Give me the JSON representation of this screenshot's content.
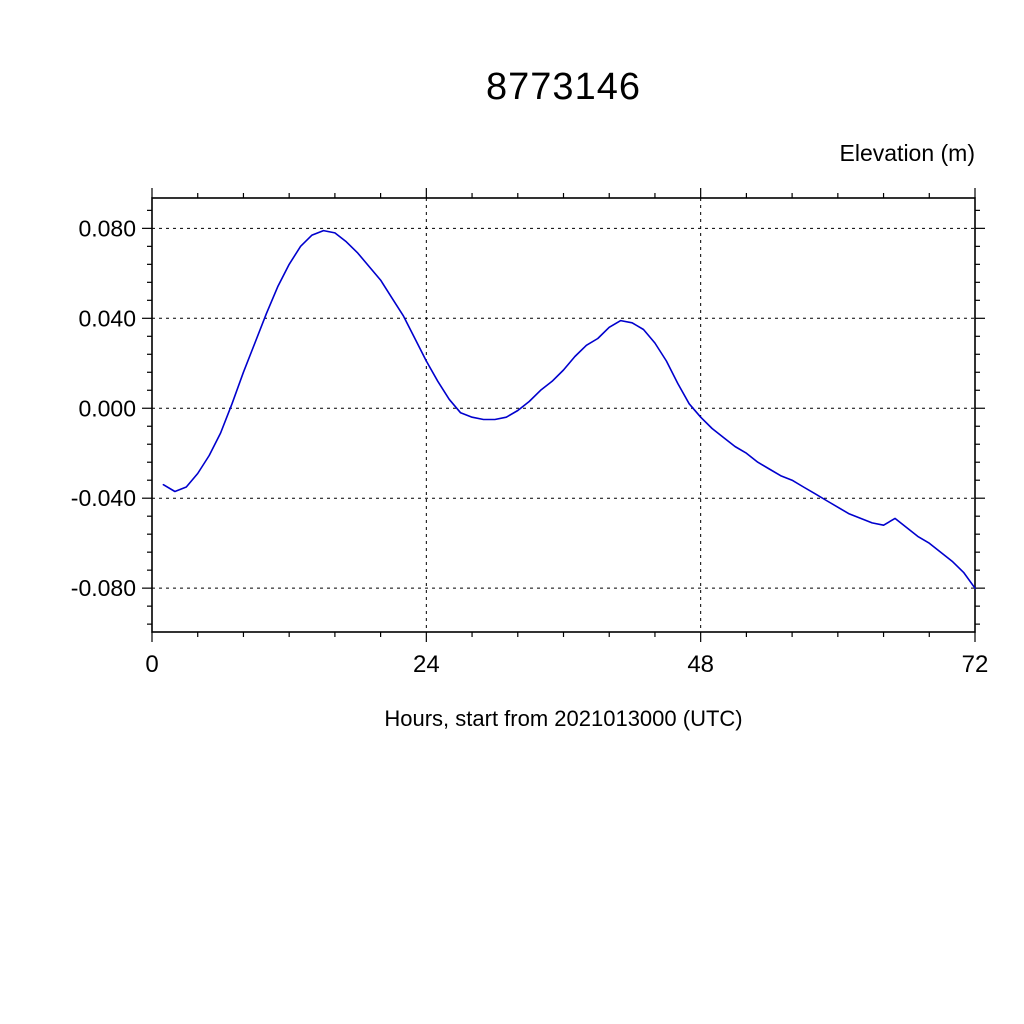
{
  "title": "8773146",
  "right_axis_label": "Elevation (m)",
  "x_axis_label": "Hours, start from 2021013000 (UTC)",
  "chart_data": {
    "type": "line",
    "title": "8773146",
    "ylabel": "Elevation (m)",
    "xlabel": "Hours, start from 2021013000 (UTC)",
    "xlim": [
      0,
      72
    ],
    "ylim": [
      -0.0995,
      0.0935
    ],
    "x_major_ticks": [
      0,
      24,
      48,
      72
    ],
    "x_tick_labels": [
      "0",
      "24",
      "48",
      "72"
    ],
    "x_minor_step": 4,
    "y_major_ticks": [
      -0.08,
      -0.04,
      0.0,
      0.04,
      0.08
    ],
    "y_tick_labels": [
      "-0.080",
      "-0.040",
      "0.000",
      "0.040",
      "0.080"
    ],
    "y_minor_step": 0.008,
    "grid": "dashed",
    "x_grid_at": [
      24,
      48
    ],
    "frame_color": "#000000",
    "grid_color": "#000000",
    "series": [
      {
        "name": "elevation",
        "color": "#0000cd",
        "x": [
          1,
          2,
          3,
          4,
          5,
          6,
          7,
          8,
          9,
          10,
          11,
          12,
          13,
          14,
          15,
          16,
          17,
          18,
          19,
          20,
          21,
          22,
          23,
          24,
          25,
          26,
          27,
          28,
          29,
          30,
          31,
          32,
          33,
          34,
          35,
          36,
          37,
          38,
          39,
          40,
          41,
          42,
          43,
          44,
          45,
          46,
          47,
          48,
          49,
          50,
          51,
          52,
          53,
          54,
          55,
          56,
          57,
          58,
          59,
          60,
          61,
          62,
          63,
          64,
          65,
          66,
          67,
          68,
          69,
          70,
          71,
          72
        ],
        "y": [
          -0.034,
          -0.037,
          -0.035,
          -0.029,
          -0.021,
          -0.011,
          0.002,
          0.016,
          0.029,
          0.042,
          0.054,
          0.064,
          0.072,
          0.077,
          0.079,
          0.078,
          0.074,
          0.069,
          0.063,
          0.057,
          0.049,
          0.041,
          0.031,
          0.021,
          0.012,
          0.004,
          -0.002,
          -0.004,
          -0.005,
          -0.005,
          -0.004,
          -0.001,
          0.003,
          0.008,
          0.012,
          0.017,
          0.023,
          0.028,
          0.031,
          0.036,
          0.039,
          0.038,
          0.035,
          0.029,
          0.021,
          0.011,
          0.002,
          -0.004,
          -0.009,
          -0.013,
          -0.017,
          -0.02,
          -0.024,
          -0.027,
          -0.03,
          -0.032,
          -0.035,
          -0.038,
          -0.041,
          -0.044,
          -0.047,
          -0.049,
          -0.051,
          -0.052,
          -0.049,
          -0.053,
          -0.057,
          -0.06,
          -0.064,
          -0.068,
          -0.073,
          -0.08
        ]
      }
    ]
  }
}
